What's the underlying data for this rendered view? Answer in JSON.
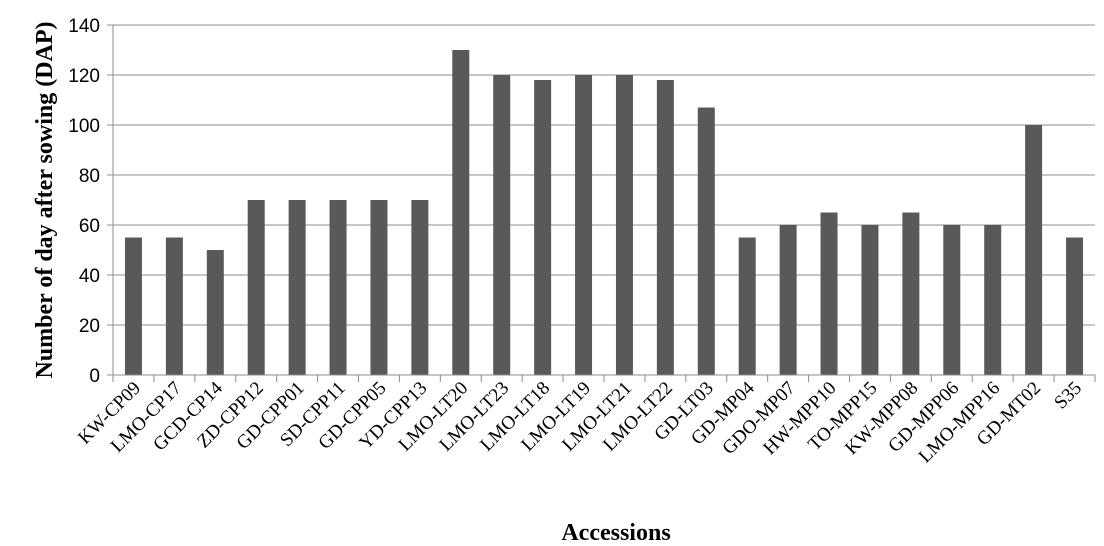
{
  "chart_data": {
    "type": "bar",
    "xlabel": "Accessions",
    "ylabel": "Number of day after sowing (DAP)",
    "ylim": [
      0,
      140
    ],
    "yticks": [
      0,
      20,
      40,
      60,
      80,
      100,
      120,
      140
    ],
    "grid": true,
    "legend": "none",
    "bar_color": "#595959",
    "categories": [
      "KW-CP09",
      "LMO-CP17",
      "GCD-CP14",
      "ZD-CPP12",
      "GD-CPP01",
      "SD-CPP11",
      "GD-CPP05",
      "YD-CPP13",
      "LMO-LT20",
      "LMO-LT23",
      "LMO-LT18",
      "LMO-LT19",
      "LMO-LT21",
      "LMO-LT22",
      "GD-LT03",
      "GD-MP04",
      "GDO-MP07",
      "HW-MPP10",
      "TO-MPP15",
      "KW-MPP08",
      "GD-MPP06",
      "LMO-MPP16",
      "GD-MT02",
      "S35"
    ],
    "values": [
      55,
      55,
      50,
      70,
      70,
      70,
      70,
      70,
      130,
      120,
      118,
      120,
      120,
      118,
      107,
      55,
      60,
      65,
      60,
      65,
      60,
      60,
      100,
      55
    ]
  }
}
